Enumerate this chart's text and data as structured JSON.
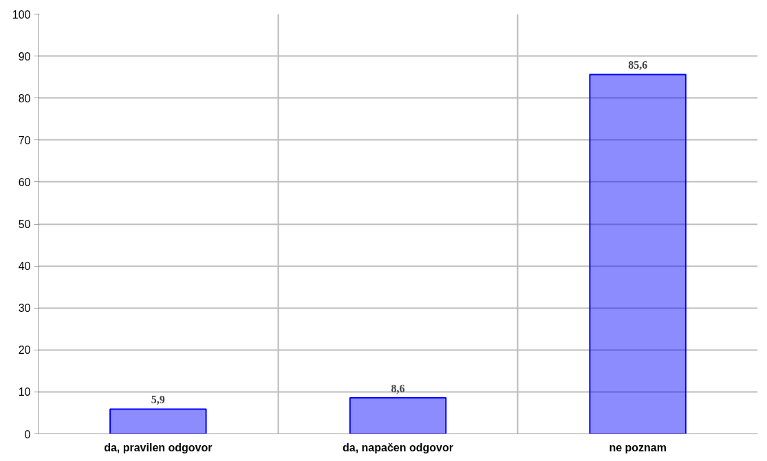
{
  "chart_data": {
    "type": "bar",
    "categories": [
      "da, pravilen odgovor",
      "da, napačen odgovor",
      "ne poznam"
    ],
    "values": [
      5.9,
      8.6,
      85.6
    ],
    "value_labels": [
      "5,9",
      "8,6",
      "85,6"
    ],
    "color": "#0000ff",
    "ylim": [
      0,
      100
    ],
    "yticks": [
      0,
      10,
      20,
      30,
      40,
      50,
      60,
      70,
      80,
      90,
      100
    ],
    "grid": true
  }
}
